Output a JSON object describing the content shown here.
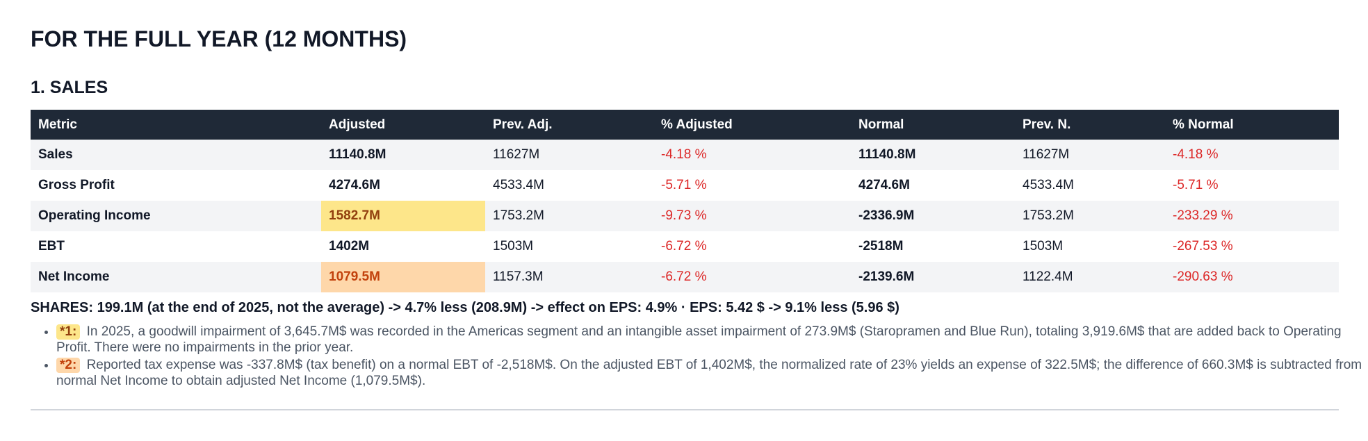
{
  "title": "FOR THE FULL YEAR (12 MONTHS)",
  "section": "1. SALES",
  "table": {
    "headers": [
      "Metric",
      "Adjusted",
      "Prev. Adj.",
      "% Adjusted",
      "Normal",
      "Prev. N.",
      "% Normal"
    ],
    "rows": [
      {
        "metric": "Sales",
        "adjusted": "11140.8M",
        "prev_adj": "11627M",
        "pct_adj": "-4.18 %",
        "normal": "11140.8M",
        "prev_n": "11627M",
        "pct_normal": "-4.18 %"
      },
      {
        "metric": "Gross Profit",
        "adjusted": "4274.6M",
        "prev_adj": "4533.4M",
        "pct_adj": "-5.71 %",
        "normal": "4274.6M",
        "prev_n": "4533.4M",
        "pct_normal": "-5.71 %"
      },
      {
        "metric": "Operating Income",
        "adjusted": "1582.7M",
        "prev_adj": "1753.2M",
        "pct_adj": "-9.73 %",
        "normal": "-2336.9M",
        "prev_n": "1753.2M",
        "pct_normal": "-233.29 %"
      },
      {
        "metric": "EBT",
        "adjusted": "1402M",
        "prev_adj": "1503M",
        "pct_adj": "-6.72 %",
        "normal": "-2518M",
        "prev_n": "1503M",
        "pct_normal": "-267.53 %"
      },
      {
        "metric": "Net Income",
        "adjusted": "1079.5M",
        "prev_adj": "1157.3M",
        "pct_adj": "-6.72 %",
        "normal": "-2139.6M",
        "prev_n": "1122.4M",
        "pct_normal": "-290.63 %"
      }
    ]
  },
  "shares_line": "SHARES: 199.1M (at the end of 2025, not the average) -> 4.7% less (208.9M) -> effect on EPS: 4.9% · EPS: 5.42 $ -> 9.1% less (5.96 $)",
  "notes": [
    {
      "tag": "*1:",
      "text": "In 2025, a goodwill impairment of 3,645.7M$ was recorded in the Americas segment and an intangible asset impairment of 273.9M$ (Staropramen and Blue Run), totaling 3,919.6M$ that are added back to Operating Profit. There were no impairments in the prior year."
    },
    {
      "tag": "*2:",
      "text": "Reported tax expense was -337.8M$ (tax benefit) on a normal EBT of -2,518M$. On the adjusted EBT of 1,402M$, the normalized rate of 23% yields an expense of 322.5M$; the difference of 660.3M$ is subtracted from normal Net Income to obtain adjusted Net Income (1,079.5M$)."
    }
  ],
  "colors": {
    "header_bg": "#1f2937",
    "negative": "#dc2626",
    "highlight_1": "#fde68a",
    "highlight_2": "#fed7aa"
  }
}
